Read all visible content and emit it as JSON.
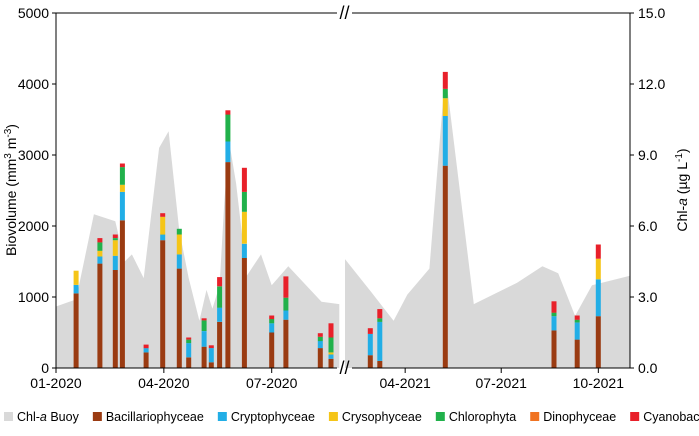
{
  "chart_data": {
    "type": "bar",
    "subtype": "stacked bar with area on secondary axis, broken x-axis",
    "y_left": {
      "label_main": "Biovolume (mm",
      "label_sup1": "3",
      "label_mid": " m",
      "label_sup2": "-3",
      "label_end": ")",
      "range": [
        0,
        5000
      ],
      "ticks": [
        "0",
        "1000",
        "2000",
        "3000",
        "4000",
        "5000"
      ]
    },
    "y_right": {
      "label_pre": "Chl-",
      "label_ital": "a",
      "label_post": " (µg L",
      "label_sup": "-1",
      "label_end": ")",
      "range": [
        0,
        15
      ],
      "ticks": [
        "0.0",
        "3.0",
        "6.0",
        "9.0",
        "12.0",
        "15.0"
      ]
    },
    "x_break_marker": "//",
    "segments": [
      {
        "name": "2020",
        "date_range": [
          "2020-01-01",
          "2020-08-31"
        ],
        "tick_labels": [
          {
            "date": "2020-01-01",
            "label": "01-2020"
          },
          {
            "date": "2020-04-01",
            "label": "04-2020"
          },
          {
            "date": "2020-07-01",
            "label": "07-2020"
          }
        ]
      },
      {
        "name": "2021",
        "date_range": [
          "2021-02-03",
          "2021-10-31"
        ],
        "tick_labels": [
          {
            "date": "2021-04-01",
            "label": "04-2021"
          },
          {
            "date": "2021-07-01",
            "label": "07-2021"
          },
          {
            "date": "2021-10-01",
            "label": "10-2021"
          }
        ]
      }
    ],
    "series": [
      {
        "name": "Bacillariophyceae",
        "color": "#9A3B12"
      },
      {
        "name": "Cryptophyceae",
        "color": "#22AEE6"
      },
      {
        "name": "Crysophyceae",
        "color": "#F5C518"
      },
      {
        "name": "Chlorophyta",
        "color": "#21B14B"
      },
      {
        "name": "Dinophyceae",
        "color": "#F07322"
      },
      {
        "name": "Cyanobacteria",
        "color": "#E8202A"
      }
    ],
    "area_series": {
      "name_pre": "Chl-",
      "name_ital": "a",
      "name_post": " Buoy",
      "color": "#D9D9D9"
    },
    "bars": [
      {
        "date": "2020-01-18",
        "values": [
          1050,
          120,
          200,
          0,
          0,
          0
        ]
      },
      {
        "date": "2020-02-07",
        "values": [
          1470,
          100,
          80,
          120,
          0,
          60
        ]
      },
      {
        "date": "2020-02-20",
        "values": [
          1380,
          200,
          220,
          30,
          0,
          50
        ]
      },
      {
        "date": "2020-02-26",
        "values": [
          2080,
          400,
          100,
          250,
          0,
          50
        ]
      },
      {
        "date": "2020-03-17",
        "values": [
          220,
          60,
          0,
          0,
          0,
          50
        ]
      },
      {
        "date": "2020-03-31",
        "values": [
          1800,
          80,
          250,
          0,
          0,
          50
        ]
      },
      {
        "date": "2020-04-14",
        "values": [
          1400,
          200,
          280,
          80,
          0,
          0
        ]
      },
      {
        "date": "2020-04-22",
        "values": [
          150,
          200,
          0,
          50,
          0,
          30
        ]
      },
      {
        "date": "2020-05-05",
        "values": [
          300,
          220,
          0,
          150,
          0,
          30
        ]
      },
      {
        "date": "2020-05-11",
        "values": [
          80,
          200,
          0,
          0,
          0,
          40
        ]
      },
      {
        "date": "2020-05-18",
        "values": [
          650,
          200,
          0,
          300,
          0,
          130
        ]
      },
      {
        "date": "2020-05-25",
        "values": [
          2900,
          290,
          0,
          380,
          0,
          60
        ]
      },
      {
        "date": "2020-06-08",
        "values": [
          1550,
          200,
          450,
          280,
          0,
          340
        ]
      },
      {
        "date": "2020-07-01",
        "values": [
          500,
          130,
          0,
          60,
          0,
          50
        ]
      },
      {
        "date": "2020-07-13",
        "values": [
          680,
          130,
          0,
          180,
          0,
          300
        ]
      },
      {
        "date": "2020-08-11",
        "values": [
          280,
          100,
          0,
          60,
          0,
          50
        ]
      },
      {
        "date": "2020-08-20",
        "values": [
          130,
          60,
          30,
          210,
          0,
          200
        ]
      },
      {
        "date": "2021-02-27",
        "values": [
          180,
          300,
          0,
          0,
          0,
          80
        ]
      },
      {
        "date": "2021-03-08",
        "values": [
          100,
          550,
          0,
          50,
          0,
          130
        ]
      },
      {
        "date": "2021-05-09",
        "values": [
          2850,
          700,
          250,
          130,
          0,
          240
        ]
      },
      {
        "date": "2021-08-20",
        "values": [
          530,
          200,
          0,
          50,
          0,
          160
        ]
      },
      {
        "date": "2021-09-11",
        "values": [
          400,
          240,
          0,
          40,
          0,
          60
        ]
      },
      {
        "date": "2021-10-01",
        "values": [
          730,
          520,
          290,
          0,
          0,
          200
        ]
      }
    ],
    "chl_a": [
      {
        "date": "2020-01-01",
        "value": 2.6
      },
      {
        "date": "2020-01-18",
        "value": 2.9
      },
      {
        "date": "2020-02-02",
        "value": 6.5
      },
      {
        "date": "2020-02-20",
        "value": 6.2
      },
      {
        "date": "2020-02-28",
        "value": 4.5
      },
      {
        "date": "2020-03-05",
        "value": 4.8
      },
      {
        "date": "2020-03-15",
        "value": 3.8
      },
      {
        "date": "2020-03-28",
        "value": 9.3
      },
      {
        "date": "2020-04-05",
        "value": 10.0
      },
      {
        "date": "2020-04-14",
        "value": 5.8
      },
      {
        "date": "2020-04-22",
        "value": 3.8
      },
      {
        "date": "2020-05-01",
        "value": 2.0
      },
      {
        "date": "2020-05-07",
        "value": 3.3
      },
      {
        "date": "2020-05-12",
        "value": 2.5
      },
      {
        "date": "2020-05-18",
        "value": 3.5
      },
      {
        "date": "2020-05-22",
        "value": 7.0
      },
      {
        "date": "2020-05-26",
        "value": 9.6
      },
      {
        "date": "2020-06-01",
        "value": 7.8
      },
      {
        "date": "2020-06-10",
        "value": 3.9
      },
      {
        "date": "2020-06-22",
        "value": 4.8
      },
      {
        "date": "2020-07-01",
        "value": 3.5
      },
      {
        "date": "2020-07-15",
        "value": 4.3
      },
      {
        "date": "2020-08-12",
        "value": 2.8
      },
      {
        "date": "2020-08-27",
        "value": 2.7
      },
      {
        "date": "2021-02-03",
        "value": 4.6
      },
      {
        "date": "2021-02-28",
        "value": 3.2
      },
      {
        "date": "2021-03-21",
        "value": 2.0
      },
      {
        "date": "2021-04-03",
        "value": 3.1
      },
      {
        "date": "2021-04-24",
        "value": 4.2
      },
      {
        "date": "2021-05-09",
        "value": 12.5
      },
      {
        "date": "2021-06-05",
        "value": 2.7
      },
      {
        "date": "2021-07-16",
        "value": 3.6
      },
      {
        "date": "2021-08-09",
        "value": 4.3
      },
      {
        "date": "2021-08-24",
        "value": 4.0
      },
      {
        "date": "2021-09-09",
        "value": 2.2
      },
      {
        "date": "2021-09-25",
        "value": 3.5
      },
      {
        "date": "2021-10-31",
        "value": 3.9
      }
    ]
  }
}
